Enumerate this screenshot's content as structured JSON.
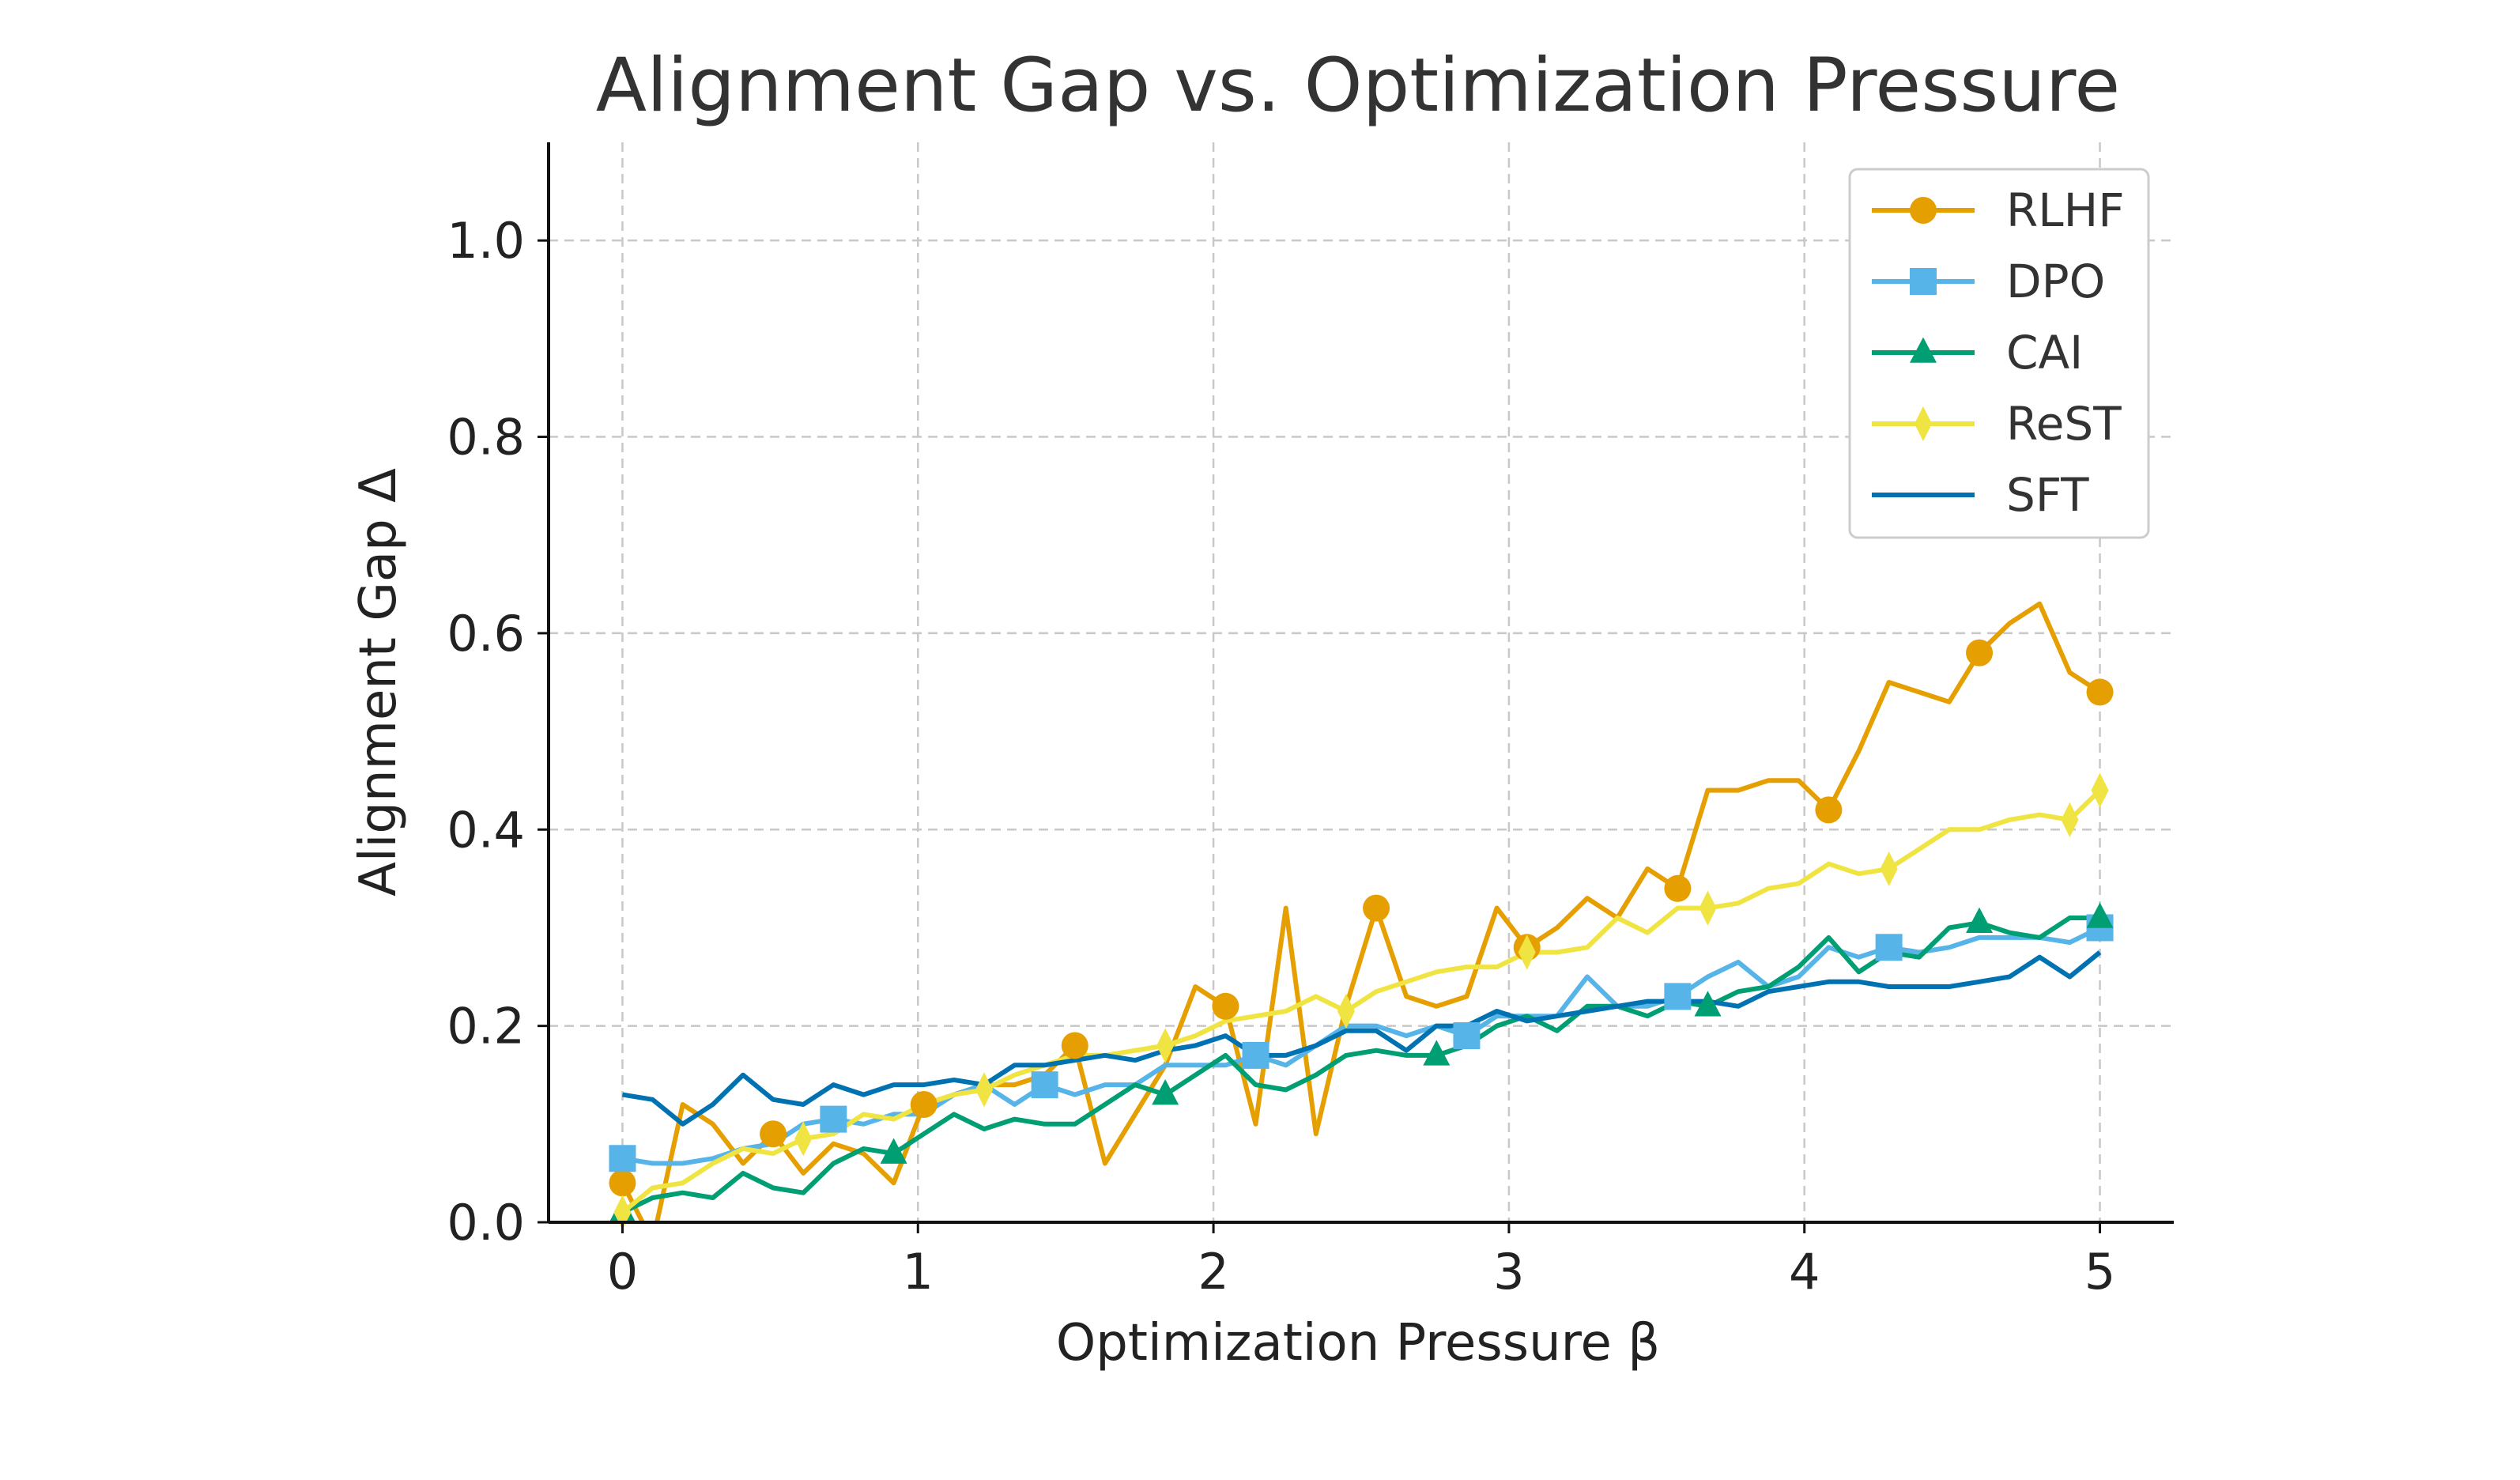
{
  "chart_data": {
    "type": "line",
    "title": "Alignment Gap vs. Optimization Pressure",
    "xlabel": "Optimization Pressure β",
    "ylabel": "Alignment Gap Δ",
    "xlim": [
      -0.25,
      5.25
    ],
    "ylim": [
      0.0,
      1.1
    ],
    "xticks": [
      0,
      1,
      2,
      3,
      4,
      5
    ],
    "xtick_labels": [
      "0",
      "1",
      "2",
      "3",
      "4",
      "5"
    ],
    "yticks": [
      0.0,
      0.2,
      0.4,
      0.6,
      0.8,
      1.0
    ],
    "ytick_labels": [
      "0.0",
      "0.2",
      "0.4",
      "0.6",
      "0.8",
      "1.0"
    ],
    "grid": true,
    "legend_position": "upper-right",
    "x": [
      0.0,
      0.102,
      0.204,
      0.306,
      0.408,
      0.51,
      0.612,
      0.714,
      0.816,
      0.918,
      1.02,
      1.122,
      1.224,
      1.327,
      1.429,
      1.531,
      1.633,
      1.735,
      1.837,
      1.939,
      2.041,
      2.143,
      2.245,
      2.347,
      2.449,
      2.551,
      2.653,
      2.755,
      2.857,
      2.959,
      3.061,
      3.163,
      3.265,
      3.367,
      3.469,
      3.571,
      3.673,
      3.776,
      3.878,
      3.98,
      4.082,
      4.184,
      4.286,
      4.388,
      4.49,
      4.592,
      4.694,
      4.796,
      4.898,
      5.0
    ],
    "series": [
      {
        "name": "RLHF",
        "color": "#E69F00",
        "marker": "circle",
        "marker_every": 5,
        "values": [
          0.04,
          -0.02,
          0.12,
          0.1,
          0.06,
          0.09,
          0.05,
          0.08,
          0.07,
          0.04,
          0.12,
          0.13,
          0.14,
          0.14,
          0.15,
          0.18,
          0.06,
          0.11,
          0.16,
          0.24,
          0.22,
          0.1,
          0.32,
          0.09,
          0.22,
          0.32,
          0.23,
          0.22,
          0.23,
          0.32,
          0.28,
          0.3,
          0.33,
          0.31,
          0.36,
          0.34,
          0.44,
          0.44,
          0.45,
          0.45,
          0.42,
          0.48,
          0.55,
          0.54,
          0.53,
          0.58,
          0.61,
          0.63,
          0.56,
          0.54
        ]
      },
      {
        "name": "DPO",
        "color": "#56B4E9",
        "marker": "square",
        "marker_every": 7,
        "values": [
          0.065,
          0.06,
          0.06,
          0.065,
          0.075,
          0.08,
          0.1,
          0.105,
          0.1,
          0.11,
          0.11,
          0.13,
          0.14,
          0.12,
          0.14,
          0.13,
          0.14,
          0.14,
          0.16,
          0.16,
          0.16,
          0.17,
          0.16,
          0.18,
          0.2,
          0.2,
          0.19,
          0.2,
          0.19,
          0.21,
          0.21,
          0.21,
          0.25,
          0.22,
          0.22,
          0.23,
          0.25,
          0.265,
          0.24,
          0.25,
          0.28,
          0.27,
          0.28,
          0.275,
          0.28,
          0.29,
          0.29,
          0.29,
          0.285,
          0.3
        ]
      },
      {
        "name": "CAI",
        "color": "#009E73",
        "marker": "triangle",
        "marker_every": 9,
        "values": [
          0.01,
          0.025,
          0.03,
          0.025,
          0.05,
          0.035,
          0.03,
          0.06,
          0.075,
          0.07,
          0.09,
          0.11,
          0.095,
          0.105,
          0.1,
          0.1,
          0.12,
          0.14,
          0.13,
          0.15,
          0.17,
          0.14,
          0.135,
          0.15,
          0.17,
          0.175,
          0.17,
          0.17,
          0.18,
          0.2,
          0.21,
          0.195,
          0.22,
          0.22,
          0.21,
          0.225,
          0.22,
          0.235,
          0.24,
          0.26,
          0.29,
          0.255,
          0.275,
          0.27,
          0.3,
          0.305,
          0.295,
          0.29,
          0.31,
          0.31
        ]
      },
      {
        "name": "ReST",
        "color": "#F0E442",
        "marker": "thin_diamond",
        "marker_every": 6,
        "values": [
          0.01,
          0.035,
          0.04,
          0.06,
          0.075,
          0.07,
          0.085,
          0.09,
          0.11,
          0.105,
          0.12,
          0.13,
          0.135,
          0.15,
          0.16,
          0.17,
          0.17,
          0.175,
          0.18,
          0.19,
          0.205,
          0.21,
          0.215,
          0.23,
          0.215,
          0.235,
          0.245,
          0.255,
          0.26,
          0.26,
          0.275,
          0.275,
          0.28,
          0.31,
          0.295,
          0.32,
          0.32,
          0.325,
          0.34,
          0.345,
          0.365,
          0.355,
          0.36,
          0.38,
          0.4,
          0.4,
          0.41,
          0.415,
          0.41,
          0.44
        ]
      },
      {
        "name": "SFT",
        "color": "#0072B2",
        "marker": "none",
        "values": [
          0.13,
          0.125,
          0.1,
          0.12,
          0.15,
          0.125,
          0.12,
          0.14,
          0.13,
          0.14,
          0.14,
          0.145,
          0.14,
          0.16,
          0.16,
          0.165,
          0.17,
          0.165,
          0.175,
          0.18,
          0.19,
          0.17,
          0.17,
          0.18,
          0.195,
          0.195,
          0.175,
          0.2,
          0.2,
          0.215,
          0.205,
          0.21,
          0.215,
          0.22,
          0.225,
          0.225,
          0.225,
          0.22,
          0.235,
          0.24,
          0.245,
          0.245,
          0.24,
          0.24,
          0.24,
          0.245,
          0.25,
          0.27,
          0.25,
          0.275
        ]
      }
    ]
  }
}
